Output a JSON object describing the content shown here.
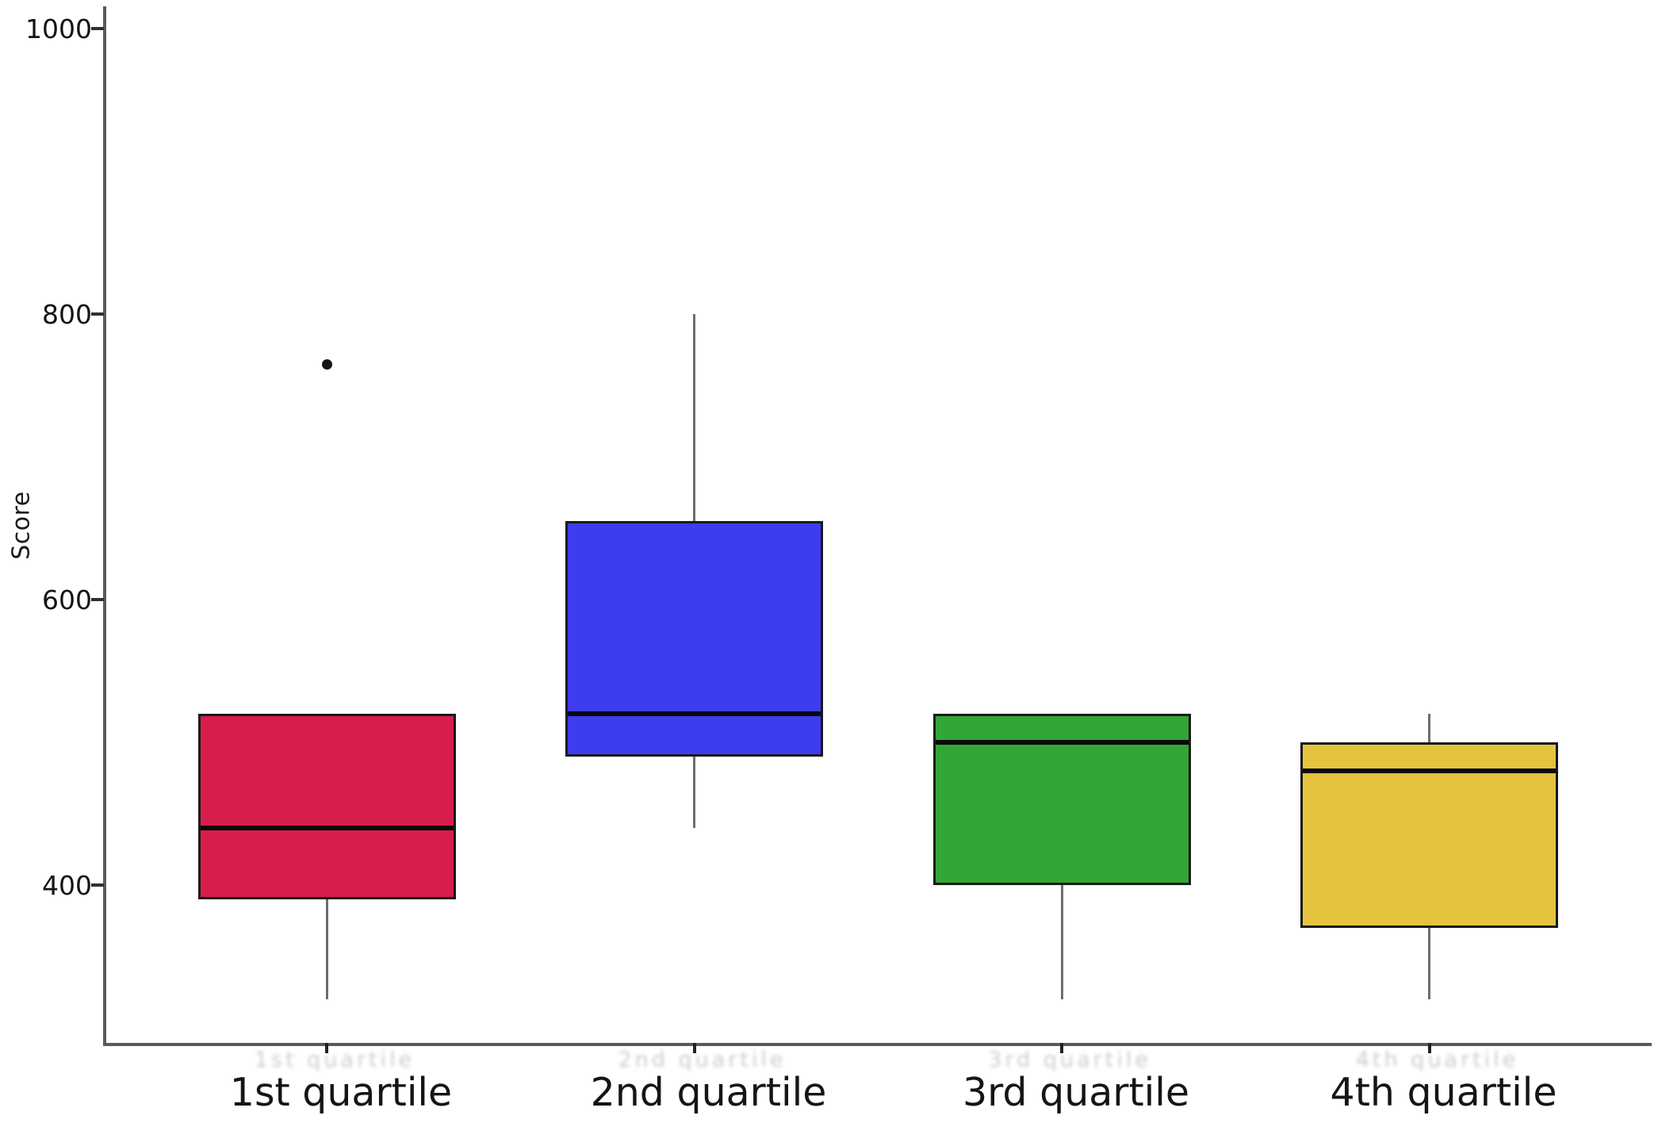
{
  "chart_data": {
    "type": "box",
    "title": "",
    "xlabel": "",
    "ylabel": "Score",
    "y_ticks": [
      400,
      600,
      800,
      1000
    ],
    "ylim": [
      290,
      1015
    ],
    "grid": false,
    "legend": null,
    "categories": [
      "1st quartile",
      "2nd quartile",
      "3rd quartile",
      "4th quartile"
    ],
    "series": [
      {
        "name": "1st quartile",
        "color": "#d81c4b",
        "whisker_low": 320,
        "q1": 390,
        "median": 440,
        "q3": 520,
        "whisker_high": 520,
        "outliers": [
          765
        ]
      },
      {
        "name": "2nd quartile",
        "color": "#3d3cf0",
        "whisker_low": 440,
        "q1": 490,
        "median": 520,
        "q3": 655,
        "whisker_high": 800,
        "outliers": []
      },
      {
        "name": "3rd quartile",
        "color": "#32a636",
        "whisker_low": 320,
        "q1": 400,
        "median": 500,
        "q3": 520,
        "whisker_high": 520,
        "outliers": []
      },
      {
        "name": "4th quartile",
        "color": "#e4c33f",
        "whisker_low": 320,
        "q1": 370,
        "median": 480,
        "q3": 500,
        "whisker_high": 520,
        "outliers": []
      }
    ]
  }
}
